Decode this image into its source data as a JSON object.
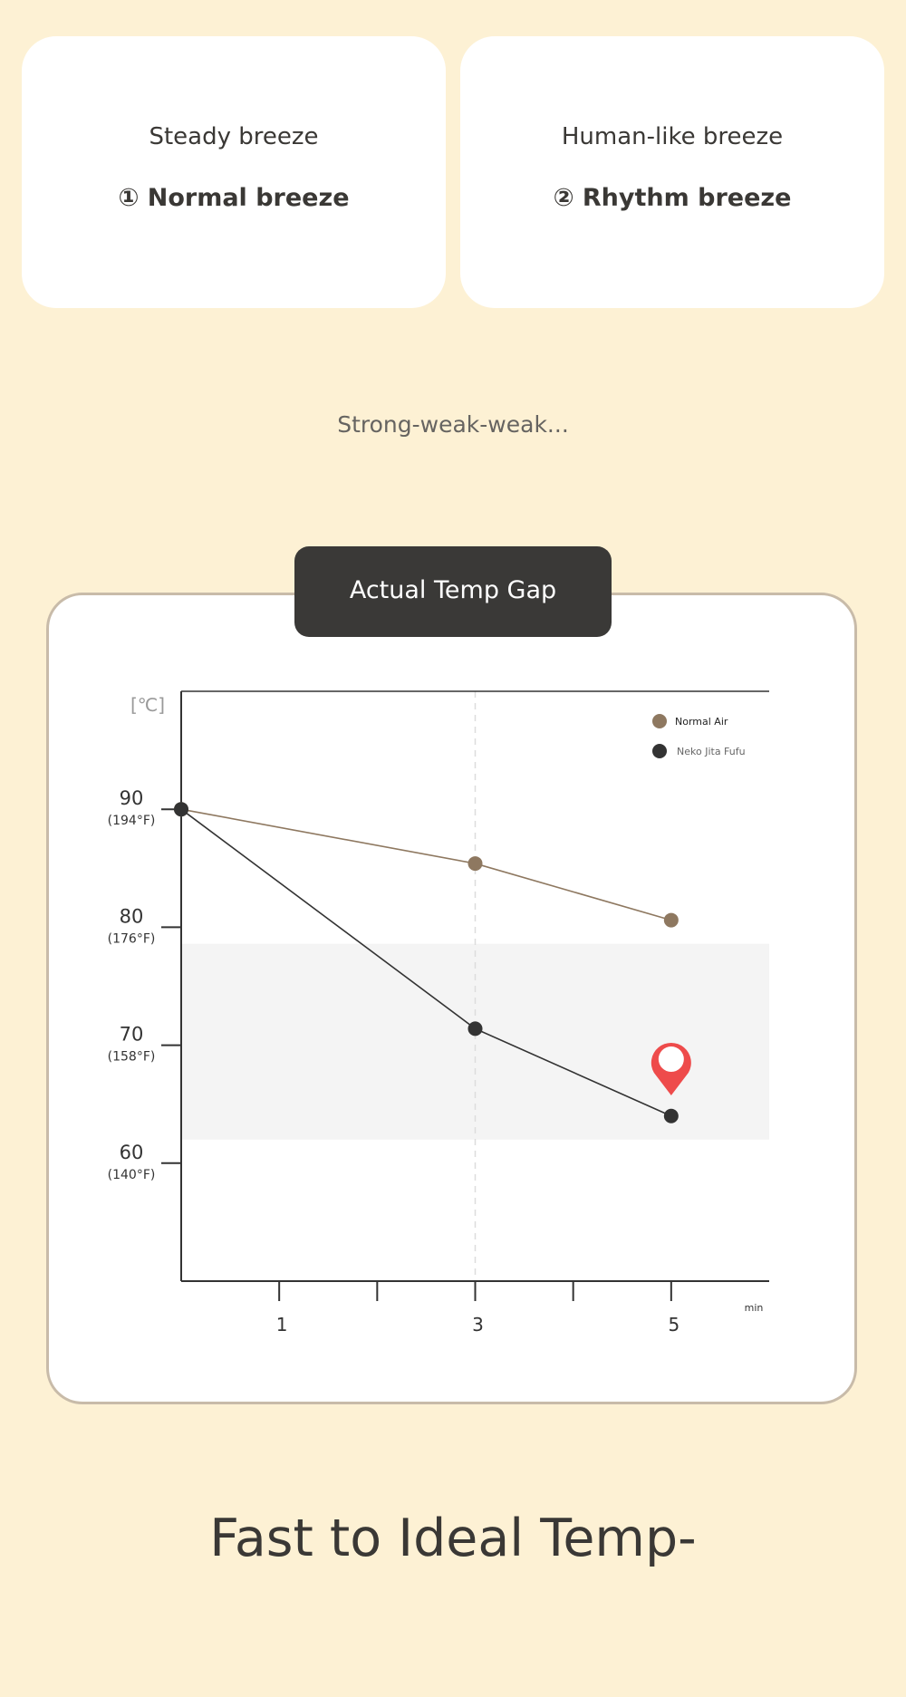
{
  "modes": [
    {
      "subtitle": "Steady breeze",
      "name": "① Normal breeze"
    },
    {
      "subtitle": "Human-like breeze",
      "name": "② Rhythm breeze"
    }
  ],
  "rhythm_description": "Strong-weak-weak...",
  "chart_tag": "Actual Temp Gap",
  "headline": "Fast to Ideal Temp-",
  "colors": {
    "background": "#FDF1D4",
    "normal_air": "#8E7860",
    "neko_jita_fufu": "#333333",
    "marker": "#EE4B4B",
    "ideal_band": "#F4F4F4"
  },
  "chart_data": {
    "type": "line",
    "ylabel": "[℃]",
    "xlabel": "min",
    "x_ticks": [
      0,
      1,
      2,
      3,
      4,
      5
    ],
    "x_tick_labels": [
      {
        "x": 1,
        "label": "1"
      },
      {
        "x": 3,
        "label": "3"
      },
      {
        "x": 5,
        "label": "5"
      }
    ],
    "y_ticks": [
      {
        "value": 90,
        "label": "90",
        "sub": "(194°F)"
      },
      {
        "value": 80,
        "label": "80",
        "sub": "(176°F)"
      },
      {
        "value": 70,
        "label": "70",
        "sub": "(158°F)"
      },
      {
        "value": 60,
        "label": "60",
        "sub": "(140°F)"
      }
    ],
    "xlim": [
      0,
      6
    ],
    "ylim": [
      50,
      100
    ],
    "grid": false,
    "legend_position": "top-right",
    "reference_line_x": 3,
    "ideal_band": [
      62,
      78.6
    ],
    "series": [
      {
        "name": "Normal Air",
        "x": [
          0,
          3,
          5
        ],
        "y": [
          90,
          85.4,
          80.6
        ]
      },
      {
        "name": "Neko Jita Fufu",
        "x": [
          0,
          3,
          5
        ],
        "y": [
          90,
          71.4,
          64
        ]
      }
    ],
    "marker_point": {
      "x": 5,
      "y": 68.2
    }
  }
}
